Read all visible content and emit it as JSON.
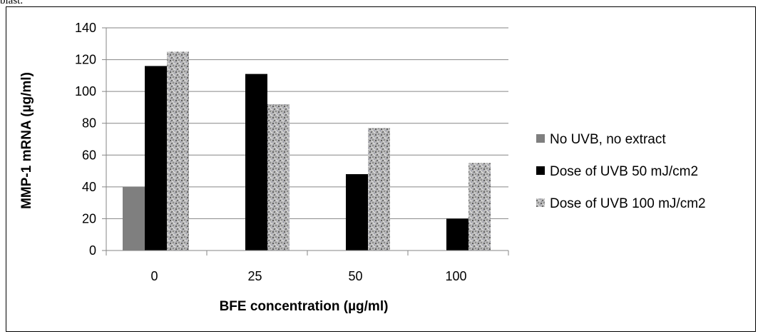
{
  "page": {
    "top_caption": "blast."
  },
  "chart_data": {
    "type": "bar",
    "categories": [
      "0",
      "25",
      "50",
      "100"
    ],
    "series": [
      {
        "name": "No UVB, no extract",
        "values": [
          40,
          null,
          null,
          null
        ],
        "color": "#7f7f7f",
        "pattern": "solid"
      },
      {
        "name": "Dose of UVB 50 mJ/cm2",
        "values": [
          116,
          111,
          48,
          20
        ],
        "color": "#000000",
        "pattern": "solid"
      },
      {
        "name": "Dose of UVB 100 mJ/cm2",
        "values": [
          125,
          92,
          77,
          55
        ],
        "color": "#a6a6a6",
        "pattern": "granite"
      }
    ],
    "xlabel": "BFE concentration (µg/ml)",
    "ylabel": "MMP-1 mRNA (µg/ml)",
    "ylim": [
      0,
      140
    ],
    "yticks": [
      0,
      20,
      40,
      60,
      80,
      100,
      120,
      140
    ],
    "grid": true,
    "legend_position": "right"
  }
}
